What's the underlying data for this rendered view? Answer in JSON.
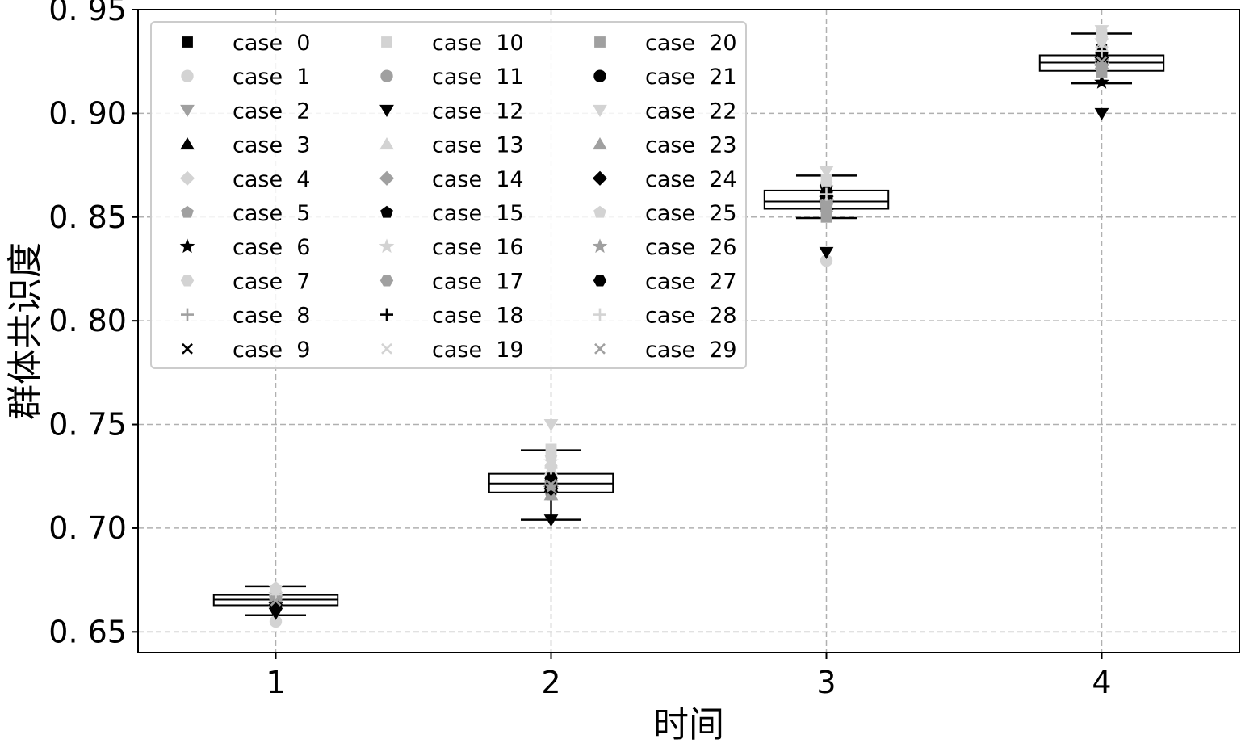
{
  "chart_data": {
    "type": "box",
    "title": "",
    "xlabel": "时间",
    "ylabel": "群体共识度",
    "ylim": [
      0.64,
      0.95
    ],
    "xlim": [
      0.5,
      4.5
    ],
    "x_ticks": [
      "1",
      "2",
      "3",
      "4"
    ],
    "y_ticks": [
      "0. 65",
      "0. 70",
      "0. 75",
      "0. 80",
      "0. 85",
      "0. 90",
      "0. 95"
    ],
    "y_tick_values": [
      0.65,
      0.7,
      0.75,
      0.8,
      0.85,
      0.9,
      0.95
    ],
    "grid": true,
    "legend_position": "top-left",
    "legend_columns": 3,
    "boxes": [
      {
        "x": 1,
        "whisker_low": 0.658,
        "q1": 0.6628,
        "median": 0.6655,
        "q3": 0.6678,
        "whisker_high": 0.672
      },
      {
        "x": 2,
        "whisker_low": 0.704,
        "q1": 0.7172,
        "median": 0.7215,
        "q3": 0.7262,
        "whisker_high": 0.7375
      },
      {
        "x": 3,
        "whisker_low": 0.8495,
        "q1": 0.854,
        "median": 0.8575,
        "q3": 0.8628,
        "whisker_high": 0.87
      },
      {
        "x": 4,
        "whisker_low": 0.9145,
        "q1": 0.9205,
        "median": 0.9245,
        "q3": 0.928,
        "whisker_high": 0.9385
      }
    ],
    "series": [
      {
        "name": "case  0",
        "marker": "square",
        "color": "#000000",
        "values": [
          0.667,
          0.7215,
          0.856,
          0.925
        ]
      },
      {
        "name": "case  1",
        "marker": "circle",
        "color": "#d3d3d3",
        "values": [
          0.655,
          0.725,
          0.829,
          0.93
        ]
      },
      {
        "name": "case  2",
        "marker": "triangle_down",
        "color": "#a0a0a0",
        "values": [
          0.665,
          0.718,
          0.86,
          0.922
        ]
      },
      {
        "name": "case  3",
        "marker": "triangle_up",
        "color": "#000000",
        "values": [
          0.668,
          0.72,
          0.856,
          0.926
        ]
      },
      {
        "name": "case  4",
        "marker": "diamond",
        "color": "#d3d3d3",
        "values": [
          0.664,
          0.723,
          0.858,
          0.924
        ]
      },
      {
        "name": "case  5",
        "marker": "pentagon",
        "color": "#a0a0a0",
        "values": [
          0.662,
          0.716,
          0.854,
          0.923
        ]
      },
      {
        "name": "case  6",
        "marker": "star",
        "color": "#000000",
        "values": [
          0.663,
          0.719,
          0.857,
          0.915
        ]
      },
      {
        "name": "case  7",
        "marker": "hexagon",
        "color": "#d3d3d3",
        "values": [
          0.669,
          0.73,
          0.862,
          0.932
        ]
      },
      {
        "name": "case  8",
        "marker": "plus",
        "color": "#a0a0a0",
        "values": [
          0.666,
          0.722,
          0.859,
          0.927
        ]
      },
      {
        "name": "case  9",
        "marker": "x",
        "color": "#000000",
        "values": [
          0.664,
          0.725,
          0.86,
          0.931
        ]
      },
      {
        "name": "case  10",
        "marker": "square",
        "color": "#d3d3d3",
        "values": [
          0.67,
          0.738,
          0.868,
          0.938
        ]
      },
      {
        "name": "case  11",
        "marker": "circle",
        "color": "#a0a0a0",
        "values": [
          0.667,
          0.721,
          0.856,
          0.925
        ]
      },
      {
        "name": "case  12",
        "marker": "triangle_down",
        "color": "#000000",
        "values": [
          0.659,
          0.704,
          0.833,
          0.9
        ]
      },
      {
        "name": "case  13",
        "marker": "triangle_up",
        "color": "#d3d3d3",
        "values": [
          0.665,
          0.728,
          0.863,
          0.929
        ]
      },
      {
        "name": "case  14",
        "marker": "diamond",
        "color": "#a0a0a0",
        "values": [
          0.666,
          0.72,
          0.857,
          0.926
        ]
      },
      {
        "name": "case  15",
        "marker": "pentagon",
        "color": "#000000",
        "values": [
          0.664,
          0.718,
          0.858,
          0.924
        ]
      },
      {
        "name": "case  16",
        "marker": "star",
        "color": "#d3d3d3",
        "values": [
          0.668,
          0.732,
          0.864,
          0.935
        ]
      },
      {
        "name": "case  17",
        "marker": "hexagon",
        "color": "#a0a0a0",
        "values": [
          0.665,
          0.723,
          0.856,
          0.923
        ]
      },
      {
        "name": "case  18",
        "marker": "plus",
        "color": "#000000",
        "values": [
          0.663,
          0.719,
          0.859,
          0.927
        ]
      },
      {
        "name": "case  19",
        "marker": "x",
        "color": "#d3d3d3",
        "values": [
          0.669,
          0.731,
          0.865,
          0.933
        ]
      },
      {
        "name": "case  20",
        "marker": "square",
        "color": "#a0a0a0",
        "values": [
          0.666,
          0.722,
          0.85,
          0.92
        ]
      },
      {
        "name": "case  21",
        "marker": "circle",
        "color": "#000000",
        "values": [
          0.662,
          0.72,
          0.865,
          0.928
        ]
      },
      {
        "name": "case  22",
        "marker": "triangle_down",
        "color": "#d3d3d3",
        "values": [
          0.67,
          0.75,
          0.872,
          0.94
        ]
      },
      {
        "name": "case  23",
        "marker": "triangle_up",
        "color": "#a0a0a0",
        "values": [
          0.665,
          0.716,
          0.855,
          0.924
        ]
      },
      {
        "name": "case  24",
        "marker": "diamond",
        "color": "#000000",
        "values": [
          0.663,
          0.719,
          0.86,
          0.927
        ]
      },
      {
        "name": "case  25",
        "marker": "pentagon",
        "color": "#d3d3d3",
        "values": [
          0.671,
          0.734,
          0.866,
          0.936
        ]
      },
      {
        "name": "case  26",
        "marker": "star",
        "color": "#a0a0a0",
        "values": [
          0.664,
          0.72,
          0.857,
          0.922
        ]
      },
      {
        "name": "case  27",
        "marker": "hexagon",
        "color": "#000000",
        "values": [
          0.662,
          0.724,
          0.862,
          0.929
        ]
      },
      {
        "name": "case  28",
        "marker": "plus",
        "color": "#d3d3d3",
        "values": [
          0.668,
          0.729,
          0.861,
          0.93
        ]
      },
      {
        "name": "case  29",
        "marker": "x",
        "color": "#a0a0a0",
        "values": [
          0.665,
          0.721,
          0.856,
          0.925
        ]
      }
    ]
  }
}
